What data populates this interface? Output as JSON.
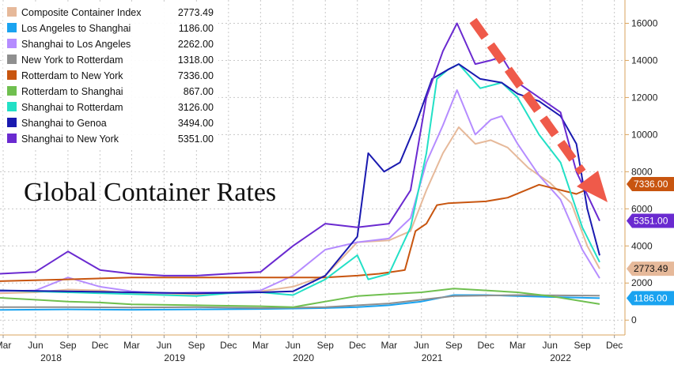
{
  "chart_data": {
    "type": "line",
    "title": "Global Container Rates",
    "ylim": [
      -800,
      17000
    ],
    "y_ticks": [
      0,
      2000,
      4000,
      6000,
      8000,
      10000,
      12000,
      14000,
      16000
    ],
    "y_tick_labels": [
      "0",
      "2000",
      "4000",
      "6000",
      "8000",
      "10000",
      "12000",
      "14000",
      "16000"
    ],
    "x_range": [
      "2018-02-20",
      "2022-12-31"
    ],
    "month_ticks": [
      {
        "label": "Mar",
        "date": "2018-03-01"
      },
      {
        "label": "Jun",
        "date": "2018-06-01"
      },
      {
        "label": "Sep",
        "date": "2018-09-01"
      },
      {
        "label": "Dec",
        "date": "2018-12-01"
      },
      {
        "label": "Mar",
        "date": "2019-03-01"
      },
      {
        "label": "Jun",
        "date": "2019-06-01"
      },
      {
        "label": "Sep",
        "date": "2019-09-01"
      },
      {
        "label": "Dec",
        "date": "2019-12-01"
      },
      {
        "label": "Mar",
        "date": "2020-03-01"
      },
      {
        "label": "Jun",
        "date": "2020-06-01"
      },
      {
        "label": "Sep",
        "date": "2020-09-01"
      },
      {
        "label": "Dec",
        "date": "2020-12-01"
      },
      {
        "label": "Mar",
        "date": "2021-03-01"
      },
      {
        "label": "Jun",
        "date": "2021-06-01"
      },
      {
        "label": "Sep",
        "date": "2021-09-01"
      },
      {
        "label": "Dec",
        "date": "2021-12-01"
      },
      {
        "label": "Mar",
        "date": "2022-03-01"
      },
      {
        "label": "Jun",
        "date": "2022-06-01"
      },
      {
        "label": "Sep",
        "date": "2022-09-01"
      },
      {
        "label": "Dec",
        "date": "2022-12-01"
      }
    ],
    "year_labels": [
      {
        "label": "2018",
        "date": "2018-07-15"
      },
      {
        "label": "2019",
        "date": "2019-07-01"
      },
      {
        "label": "2020",
        "date": "2020-07-01"
      },
      {
        "label": "2021",
        "date": "2021-07-01"
      },
      {
        "label": "2022",
        "date": "2022-07-01"
      }
    ],
    "legend_position": "top-left",
    "series": [
      {
        "name": "Composite Container Index",
        "last": "2773.49",
        "color": "#e6b99a",
        "points": [
          [
            "2018-02-20",
            1450
          ],
          [
            "2018-06-01",
            1500
          ],
          [
            "2018-09-01",
            1650
          ],
          [
            "2018-12-01",
            1600
          ],
          [
            "2019-03-01",
            1450
          ],
          [
            "2019-06-01",
            1400
          ],
          [
            "2019-09-01",
            1380
          ],
          [
            "2019-12-01",
            1450
          ],
          [
            "2020-03-01",
            1550
          ],
          [
            "2020-06-01",
            1800
          ],
          [
            "2020-09-01",
            2400
          ],
          [
            "2020-12-01",
            4200
          ],
          [
            "2021-03-01",
            4300
          ],
          [
            "2021-05-01",
            4800
          ],
          [
            "2021-06-15",
            7000
          ],
          [
            "2021-08-01",
            9000
          ],
          [
            "2021-09-15",
            10400
          ],
          [
            "2021-11-01",
            9500
          ],
          [
            "2021-12-15",
            9700
          ],
          [
            "2022-02-01",
            9300
          ],
          [
            "2022-04-01",
            8200
          ],
          [
            "2022-06-01",
            7400
          ],
          [
            "2022-08-01",
            6300
          ],
          [
            "2022-09-15",
            4000
          ],
          [
            "2022-10-20",
            2773
          ]
        ]
      },
      {
        "name": "Los Angeles to Shanghai",
        "last": "1186.00",
        "color": "#1aa3f0",
        "points": [
          [
            "2018-02-20",
            550
          ],
          [
            "2018-09-01",
            580
          ],
          [
            "2019-03-01",
            560
          ],
          [
            "2019-09-01",
            580
          ],
          [
            "2020-03-01",
            600
          ],
          [
            "2020-09-01",
            650
          ],
          [
            "2020-12-01",
            700
          ],
          [
            "2021-03-01",
            800
          ],
          [
            "2021-06-01",
            1000
          ],
          [
            "2021-09-01",
            1350
          ],
          [
            "2021-12-01",
            1350
          ],
          [
            "2022-03-01",
            1300
          ],
          [
            "2022-06-01",
            1250
          ],
          [
            "2022-10-20",
            1186
          ]
        ]
      },
      {
        "name": "Shanghai to Los Angeles",
        "last": "2262.00",
        "color": "#b58cff",
        "points": [
          [
            "2018-02-20",
            1550
          ],
          [
            "2018-06-01",
            1600
          ],
          [
            "2018-09-01",
            2300
          ],
          [
            "2018-12-01",
            1800
          ],
          [
            "2019-03-01",
            1550
          ],
          [
            "2019-06-01",
            1450
          ],
          [
            "2019-09-01",
            1500
          ],
          [
            "2019-12-01",
            1500
          ],
          [
            "2020-03-01",
            1600
          ],
          [
            "2020-06-01",
            2400
          ],
          [
            "2020-09-01",
            3800
          ],
          [
            "2020-12-01",
            4200
          ],
          [
            "2021-03-01",
            4400
          ],
          [
            "2021-05-01",
            5500
          ],
          [
            "2021-06-15",
            8500
          ],
          [
            "2021-08-01",
            10500
          ],
          [
            "2021-09-10",
            12400
          ],
          [
            "2021-11-01",
            10000
          ],
          [
            "2021-12-15",
            10800
          ],
          [
            "2022-01-15",
            11000
          ],
          [
            "2022-03-01",
            9500
          ],
          [
            "2022-05-01",
            7800
          ],
          [
            "2022-07-01",
            6500
          ],
          [
            "2022-09-01",
            3800
          ],
          [
            "2022-10-20",
            2262
          ]
        ]
      },
      {
        "name": "New York to Rotterdam",
        "last": "1318.00",
        "color": "#8f8f8f",
        "points": [
          [
            "2018-02-20",
            700
          ],
          [
            "2018-09-01",
            700
          ],
          [
            "2019-03-01",
            680
          ],
          [
            "2019-09-01",
            700
          ],
          [
            "2020-03-01",
            650
          ],
          [
            "2020-09-01",
            700
          ],
          [
            "2021-03-01",
            900
          ],
          [
            "2021-06-01",
            1100
          ],
          [
            "2021-09-01",
            1300
          ],
          [
            "2022-03-01",
            1350
          ],
          [
            "2022-10-20",
            1318
          ]
        ]
      },
      {
        "name": "Rotterdam to New York",
        "last": "7336.00",
        "color": "#c8550f",
        "points": [
          [
            "2018-02-20",
            2100
          ],
          [
            "2018-09-01",
            2200
          ],
          [
            "2019-03-01",
            2300
          ],
          [
            "2019-09-01",
            2300
          ],
          [
            "2020-03-01",
            2300
          ],
          [
            "2020-09-01",
            2300
          ],
          [
            "2020-12-01",
            2400
          ],
          [
            "2021-02-01",
            2500
          ],
          [
            "2021-04-15",
            2700
          ],
          [
            "2021-05-15",
            4800
          ],
          [
            "2021-06-15",
            5200
          ],
          [
            "2021-07-15",
            6200
          ],
          [
            "2021-08-15",
            6300
          ],
          [
            "2021-12-01",
            6400
          ],
          [
            "2022-02-01",
            6600
          ],
          [
            "2022-05-01",
            7300
          ],
          [
            "2022-08-15",
            6800
          ],
          [
            "2022-10-20",
            7336
          ]
        ]
      },
      {
        "name": "Rotterdam to Shanghai",
        "last": "867.00",
        "color": "#6fbf4f",
        "points": [
          [
            "2018-02-20",
            1200
          ],
          [
            "2018-06-01",
            1100
          ],
          [
            "2018-09-01",
            1000
          ],
          [
            "2018-12-01",
            950
          ],
          [
            "2019-03-01",
            850
          ],
          [
            "2019-09-01",
            800
          ],
          [
            "2020-03-01",
            750
          ],
          [
            "2020-06-01",
            700
          ],
          [
            "2020-09-01",
            1000
          ],
          [
            "2020-12-01",
            1300
          ],
          [
            "2021-03-01",
            1400
          ],
          [
            "2021-06-01",
            1500
          ],
          [
            "2021-09-01",
            1700
          ],
          [
            "2021-12-01",
            1600
          ],
          [
            "2022-03-01",
            1500
          ],
          [
            "2022-06-01",
            1300
          ],
          [
            "2022-10-20",
            867
          ]
        ]
      },
      {
        "name": "Shanghai to Rotterdam",
        "last": "3126.00",
        "color": "#22e0c6",
        "points": [
          [
            "2018-02-20",
            1600
          ],
          [
            "2018-09-01",
            1500
          ],
          [
            "2019-03-01",
            1400
          ],
          [
            "2019-09-01",
            1300
          ],
          [
            "2019-12-01",
            1450
          ],
          [
            "2020-03-01",
            1500
          ],
          [
            "2020-06-01",
            1350
          ],
          [
            "2020-09-01",
            2200
          ],
          [
            "2020-12-01",
            3500
          ],
          [
            "2021-01-01",
            2200
          ],
          [
            "2021-03-01",
            2500
          ],
          [
            "2021-05-01",
            5000
          ],
          [
            "2021-06-15",
            9000
          ],
          [
            "2021-07-15",
            13000
          ],
          [
            "2021-08-15",
            13500
          ],
          [
            "2021-09-15",
            13800
          ],
          [
            "2021-11-15",
            12500
          ],
          [
            "2022-01-15",
            12800
          ],
          [
            "2022-03-01",
            12000
          ],
          [
            "2022-05-01",
            10000
          ],
          [
            "2022-07-01",
            8500
          ],
          [
            "2022-09-01",
            5000
          ],
          [
            "2022-10-20",
            3126
          ]
        ]
      },
      {
        "name": "Shanghai to Genoa",
        "last": "3494.00",
        "color": "#1a1ab0",
        "points": [
          [
            "2018-02-20",
            1600
          ],
          [
            "2018-09-01",
            1550
          ],
          [
            "2019-03-01",
            1500
          ],
          [
            "2019-09-01",
            1450
          ],
          [
            "2020-03-01",
            1500
          ],
          [
            "2020-06-01",
            1550
          ],
          [
            "2020-09-01",
            2400
          ],
          [
            "2020-12-01",
            4500
          ],
          [
            "2021-01-01",
            9000
          ],
          [
            "2021-02-15",
            8000
          ],
          [
            "2021-04-01",
            8500
          ],
          [
            "2021-05-15",
            10500
          ],
          [
            "2021-07-01",
            13000
          ],
          [
            "2021-08-15",
            13500
          ],
          [
            "2021-09-15",
            13800
          ],
          [
            "2021-11-15",
            13000
          ],
          [
            "2022-01-15",
            12800
          ],
          [
            "2022-03-01",
            12200
          ],
          [
            "2022-05-01",
            11800
          ],
          [
            "2022-07-01",
            11000
          ],
          [
            "2022-08-15",
            9500
          ],
          [
            "2022-09-15",
            6000
          ],
          [
            "2022-10-20",
            3494
          ]
        ]
      },
      {
        "name": "Shanghai to New York",
        "last": "5351.00",
        "color": "#6a2ad0",
        "points": [
          [
            "2018-02-20",
            2500
          ],
          [
            "2018-06-01",
            2600
          ],
          [
            "2018-09-01",
            3700
          ],
          [
            "2018-12-01",
            2700
          ],
          [
            "2019-03-01",
            2500
          ],
          [
            "2019-06-01",
            2400
          ],
          [
            "2019-09-01",
            2400
          ],
          [
            "2019-12-01",
            2500
          ],
          [
            "2020-03-01",
            2600
          ],
          [
            "2020-06-01",
            4000
          ],
          [
            "2020-09-01",
            5200
          ],
          [
            "2020-12-01",
            5000
          ],
          [
            "2021-03-01",
            5200
          ],
          [
            "2021-05-01",
            7000
          ],
          [
            "2021-06-15",
            12000
          ],
          [
            "2021-08-01",
            14500
          ],
          [
            "2021-09-10",
            16000
          ],
          [
            "2021-11-01",
            13800
          ],
          [
            "2021-12-15",
            14000
          ],
          [
            "2022-01-15",
            14200
          ],
          [
            "2022-03-01",
            12800
          ],
          [
            "2022-05-01",
            12000
          ],
          [
            "2022-07-01",
            11200
          ],
          [
            "2022-08-15",
            8000
          ],
          [
            "2022-10-20",
            5351
          ]
        ]
      }
    ],
    "value_tags": [
      {
        "label": "7336.00",
        "value": 7336,
        "bg": "#c8550f",
        "fg": "#ffffff"
      },
      {
        "label": "5351.00",
        "value": 5351,
        "bg": "#6a2ad0",
        "fg": "#ffffff"
      },
      {
        "label": "2773.49",
        "value": 2773.49,
        "bg": "#e6b99a",
        "fg": "#111111"
      },
      {
        "label": "1186.00",
        "value": 1186,
        "bg": "#1aa3f0",
        "fg": "#ffffff"
      }
    ]
  }
}
